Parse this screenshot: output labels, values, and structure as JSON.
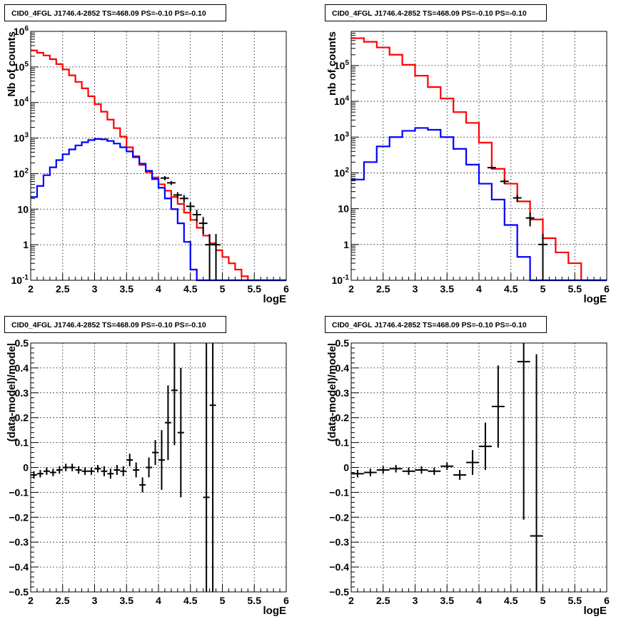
{
  "chart_data": [
    {
      "type": "line",
      "title": "CID0_4FGL J1746.4-2852 TS=468.09 PS=-0.10 PS=-0.10",
      "xlabel": "logE",
      "ylabel": "Nb of counts",
      "xlim": [
        2,
        6
      ],
      "ylim": [
        0.1,
        1000000
      ],
      "yscale": "log",
      "grid": true,
      "x_ticks": [
        "2",
        "2.5",
        "3",
        "3.5",
        "4",
        "4.5",
        "5",
        "5.5",
        "6"
      ],
      "y_ticks": [
        "10^-1",
        "1",
        "10",
        "10^2",
        "10^3",
        "10^4",
        "10^5",
        "10^6"
      ],
      "series": [
        {
          "kind": "step",
          "color": "#ff0000",
          "bin_edges": [
            2.0,
            2.1,
            2.2,
            2.3,
            2.4,
            2.5,
            2.6,
            2.7,
            2.8,
            2.9,
            3.0,
            3.1,
            3.2,
            3.3,
            3.4,
            3.5,
            3.6,
            3.7,
            3.8,
            3.9,
            4.0,
            4.1,
            4.2,
            4.3,
            4.4,
            4.5,
            4.6,
            4.7,
            4.8,
            4.9,
            5.0,
            5.1,
            5.2,
            5.3,
            5.4,
            5.5,
            5.6,
            5.7,
            5.8,
            5.9,
            6.0
          ],
          "values": [
            290000,
            250000,
            210000,
            165000,
            120000,
            85000,
            58000,
            38000,
            25000,
            15000,
            9000,
            5500,
            3300,
            1900,
            1100,
            550,
            310,
            175,
            110,
            78,
            50,
            33,
            22,
            14,
            8,
            5,
            3,
            1.8,
            1.1,
            0.7,
            0.45,
            0.3,
            0.2,
            0.13,
            0.1,
            0.1,
            0.1,
            0.1,
            0.1,
            0.1
          ]
        },
        {
          "kind": "step",
          "color": "#0000ff",
          "bin_edges": [
            2.0,
            2.1,
            2.2,
            2.3,
            2.4,
            2.5,
            2.6,
            2.7,
            2.8,
            2.9,
            3.0,
            3.1,
            3.2,
            3.3,
            3.4,
            3.5,
            3.6,
            3.7,
            3.8,
            3.9,
            4.0,
            4.1,
            4.2,
            4.3,
            4.4,
            4.5,
            4.6,
            4.7,
            4.8,
            4.9,
            5.0,
            5.1,
            5.2,
            5.3,
            5.4,
            5.5,
            5.6,
            5.7,
            5.8,
            5.9,
            6.0
          ],
          "values": [
            22,
            45,
            90,
            150,
            240,
            350,
            480,
            620,
            760,
            880,
            940,
            920,
            830,
            700,
            550,
            420,
            290,
            190,
            120,
            70,
            40,
            20,
            10,
            4,
            1.2,
            0.2,
            0.1,
            0.1,
            0.1,
            0.1,
            0.1,
            0.1,
            0.1,
            0.1,
            0.1,
            0.1,
            0.1,
            0.1,
            0.1,
            0.1
          ]
        },
        {
          "kind": "errorbars",
          "color": "#000000",
          "points": [
            [
              4.1,
              75,
              10
            ],
            [
              4.2,
              55,
              7
            ],
            [
              4.3,
              25,
              5
            ],
            [
              4.4,
              20,
              5
            ],
            [
              4.5,
              12,
              3.5
            ],
            [
              4.6,
              7,
              2.5
            ],
            [
              4.7,
              4,
              2
            ],
            [
              4.8,
              1,
              1
            ],
            [
              4.9,
              1,
              1
            ]
          ]
        }
      ]
    },
    {
      "type": "line",
      "title": "CID0_4FGL J1746.4-2852 TS=468.09 PS=-0.10 PS=-0.10",
      "xlabel": "logE",
      "ylabel": "nb of counts",
      "xlim": [
        2,
        6
      ],
      "ylim": [
        0.1,
        900000
      ],
      "yscale": "log",
      "grid": true,
      "x_ticks": [
        "2",
        "2.5",
        "3",
        "3.5",
        "4",
        "4.5",
        "5",
        "5.5",
        "6"
      ],
      "y_ticks": [
        "10^-1",
        "1",
        "10",
        "10^2",
        "10^3",
        "10^4",
        "10^5"
      ],
      "series": [
        {
          "kind": "step",
          "color": "#ff0000",
          "bin_edges": [
            2.0,
            2.2,
            2.4,
            2.6,
            2.8,
            3.0,
            3.2,
            3.4,
            3.6,
            3.8,
            4.0,
            4.2,
            4.4,
            4.6,
            4.8,
            5.0,
            5.2,
            5.4,
            5.6,
            5.8,
            6.0
          ],
          "values": [
            580000,
            460000,
            320000,
            200000,
            105000,
            52000,
            25000,
            12000,
            5000,
            2500,
            700,
            130,
            50,
            16,
            5,
            1.5,
            0.6,
            0.3,
            0.1,
            0.1
          ]
        },
        {
          "kind": "step",
          "color": "#0000ff",
          "bin_edges": [
            2.0,
            2.2,
            2.4,
            2.6,
            2.8,
            3.0,
            3.2,
            3.4,
            3.6,
            3.8,
            4.0,
            4.2,
            4.4,
            4.6,
            4.8,
            5.0,
            5.2,
            5.4,
            5.6,
            5.8,
            6.0
          ],
          "values": [
            65,
            200,
            550,
            1000,
            1500,
            1800,
            1600,
            1000,
            470,
            170,
            50,
            18,
            3.5,
            0.45,
            0.1,
            0.1,
            0.1,
            0.1,
            0.1,
            0.1
          ]
        },
        {
          "kind": "errorbars",
          "color": "#000000",
          "points": [
            [
              4.2,
              140,
              12
            ],
            [
              4.4,
              58,
              8
            ],
            [
              4.6,
              20,
              4.5
            ],
            [
              4.8,
              5.5,
              2.3
            ],
            [
              5.0,
              1,
              1
            ]
          ]
        }
      ]
    },
    {
      "type": "scatter",
      "title": "CID0_4FGL J1746.4-2852 TS=468.09 PS=-0.10 PS=-0.10",
      "xlabel": "logE",
      "ylabel": "(data-model)/model",
      "xlim": [
        2,
        6
      ],
      "ylim": [
        -0.5,
        0.5
      ],
      "grid": true,
      "x_ticks": [
        "2",
        "2.5",
        "3",
        "3.5",
        "4",
        "4.5",
        "5",
        "5.5",
        "6"
      ],
      "y_ticks": [
        "-0.5",
        "-0.4",
        "-0.3",
        "-0.2",
        "-0.1",
        "0",
        "0.1",
        "0.2",
        "0.3",
        "0.4",
        "0.5"
      ],
      "x_halfwidth": 0.05,
      "points": [
        [
          2.05,
          -0.03,
          0.015
        ],
        [
          2.15,
          -0.025,
          0.015
        ],
        [
          2.25,
          -0.015,
          0.015
        ],
        [
          2.35,
          -0.02,
          0.015
        ],
        [
          2.45,
          -0.01,
          0.015
        ],
        [
          2.55,
          0.0,
          0.015
        ],
        [
          2.65,
          0.0,
          0.015
        ],
        [
          2.75,
          -0.01,
          0.015
        ],
        [
          2.85,
          -0.015,
          0.015
        ],
        [
          2.95,
          -0.015,
          0.015
        ],
        [
          3.05,
          -0.005,
          0.015
        ],
        [
          3.15,
          -0.015,
          0.02
        ],
        [
          3.25,
          -0.025,
          0.02
        ],
        [
          3.35,
          -0.01,
          0.02
        ],
        [
          3.45,
          -0.015,
          0.02
        ],
        [
          3.55,
          0.03,
          0.025
        ],
        [
          3.65,
          -0.01,
          0.03
        ],
        [
          3.75,
          -0.07,
          0.03
        ],
        [
          3.85,
          0.0,
          0.04
        ],
        [
          3.95,
          0.06,
          0.05
        ],
        [
          4.05,
          0.03,
          0.12
        ],
        [
          4.15,
          0.18,
          0.15
        ],
        [
          4.25,
          0.31,
          0.22
        ],
        [
          4.35,
          0.14,
          0.26
        ],
        [
          4.75,
          -0.12,
          0.85
        ],
        [
          4.85,
          0.25,
          0.85
        ]
      ]
    },
    {
      "type": "scatter",
      "title": "CID0_4FGL J1746.4-2852 TS=468.09 PS=-0.10 PS=-0.10",
      "xlabel": "logE",
      "ylabel": "(data-model)/model",
      "xlim": [
        2,
        6
      ],
      "ylim": [
        -0.5,
        0.5
      ],
      "grid": true,
      "x_ticks": [
        "2",
        "2.5",
        "3",
        "3.5",
        "4",
        "4.5",
        "5",
        "5.5",
        "6"
      ],
      "y_ticks": [
        "-0.5",
        "-0.4",
        "-0.3",
        "-0.2",
        "-0.1",
        "0",
        "0.1",
        "0.2",
        "0.3",
        "0.4",
        "0.5"
      ],
      "x_halfwidth": 0.1,
      "points": [
        [
          2.1,
          -0.025,
          0.015
        ],
        [
          2.3,
          -0.02,
          0.015
        ],
        [
          2.5,
          -0.01,
          0.015
        ],
        [
          2.7,
          -0.005,
          0.015
        ],
        [
          2.9,
          -0.015,
          0.015
        ],
        [
          3.1,
          -0.01,
          0.015
        ],
        [
          3.3,
          -0.015,
          0.015
        ],
        [
          3.5,
          0.005,
          0.015
        ],
        [
          3.7,
          -0.03,
          0.02
        ],
        [
          3.9,
          0.02,
          0.05
        ],
        [
          4.1,
          0.085,
          0.095
        ],
        [
          4.3,
          0.245,
          0.165
        ],
        [
          4.7,
          0.425,
          0.635
        ],
        [
          4.9,
          -0.275,
          0.73
        ]
      ]
    }
  ]
}
